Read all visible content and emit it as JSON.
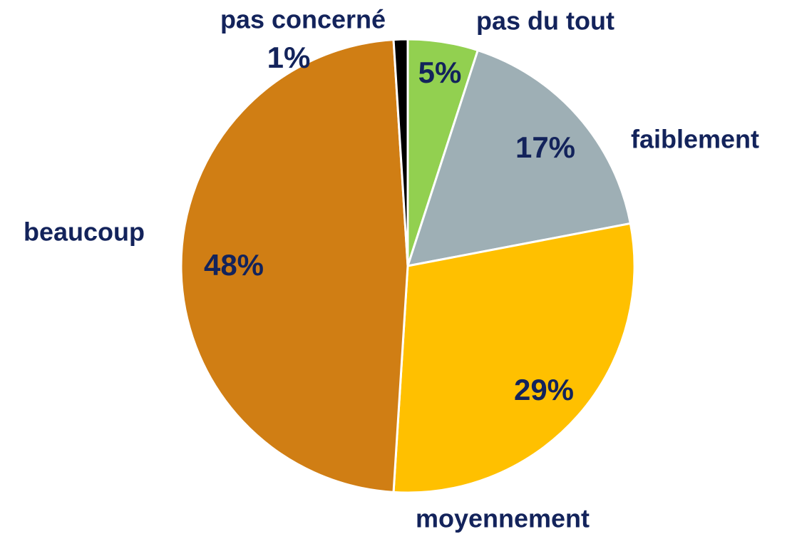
{
  "chart_data": {
    "type": "pie",
    "categories": [
      "pas du tout",
      "faiblement",
      "moyennement",
      "beaucoup",
      "pas concerné"
    ],
    "values": [
      5,
      17,
      29,
      48,
      1
    ],
    "value_labels": [
      "5%",
      "17%",
      "29%",
      "48%",
      "1%"
    ],
    "colors": [
      "#92d050",
      "#9eafb5",
      "#ffc000",
      "#d07e14",
      "#000000"
    ]
  }
}
